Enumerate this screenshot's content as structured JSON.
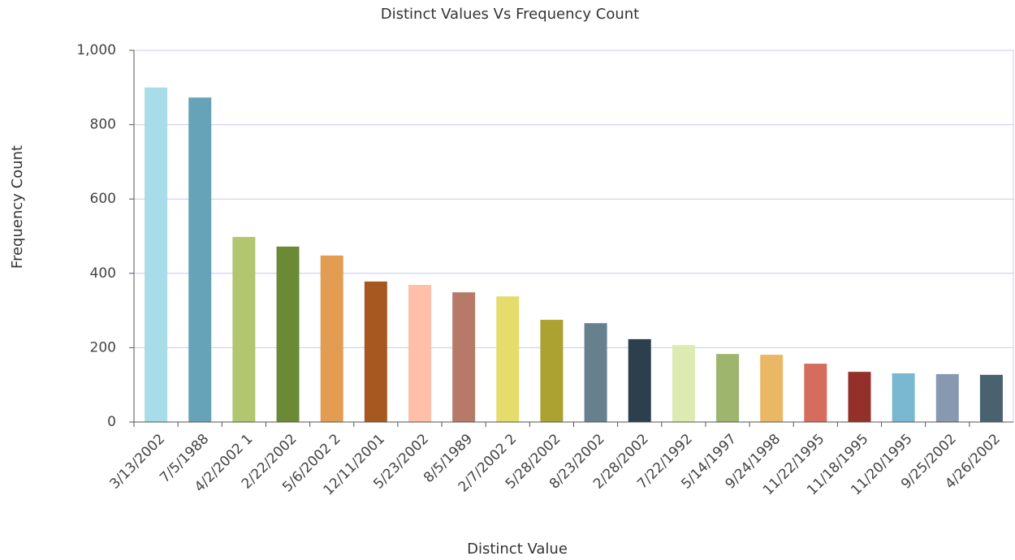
{
  "chart_data": {
    "type": "bar",
    "title": "Distinct Values Vs Frequency Count",
    "x_label": "Distinct Value",
    "y_label": "Frequency Count",
    "categories": [
      "3/13/2002",
      "7/5/1988",
      "4/2/2002 1",
      "2/22/2002",
      "5/6/2002 2",
      "12/11/2001",
      "5/23/2002",
      "8/5/1989",
      "2/7/2002 2",
      "5/28/2002",
      "8/23/2002",
      "2/28/2002",
      "7/22/1992",
      "5/14/1997",
      "9/24/1998",
      "11/22/1995",
      "11/18/1995",
      "11/20/1995",
      "9/25/2002",
      "4/26/2002"
    ],
    "values": [
      900,
      873,
      498,
      472,
      448,
      378,
      369,
      349,
      338,
      275,
      266,
      223,
      207,
      183,
      181,
      157,
      135,
      131,
      129,
      127
    ],
    "colors": [
      "#a8dce8",
      "#66a2b8",
      "#b2c66f",
      "#6a8a36",
      "#e39d52",
      "#a65820",
      "#ffbfa8",
      "#b77a68",
      "#e5dc6c",
      "#aca232",
      "#67808e",
      "#2b3f4e",
      "#ddeab1",
      "#9db56d",
      "#eab765",
      "#d66c5d",
      "#93302a",
      "#7ab8d1",
      "#8799b0",
      "#4a6170"
    ],
    "ylim": [
      0,
      1000
    ],
    "yticks": [
      0,
      200,
      400,
      600,
      800,
      {
        "value": 1000,
        "label": "1,000"
      }
    ],
    "grid": true
  }
}
